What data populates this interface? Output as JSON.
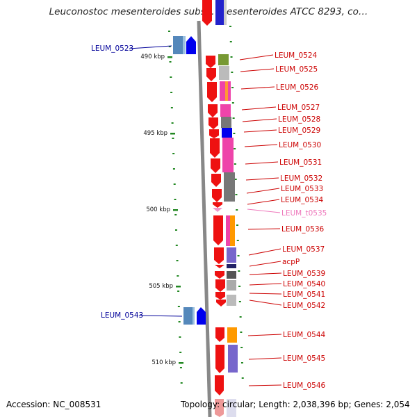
{
  "title": "Leuconostoc mesenteroides subsp. mesenteroides ATCC 8293, co…",
  "footer": {
    "accession": "Accession: NC_008531",
    "summary": "Topology: circular; Length: 2,038,396 bp; Genes: 2,054"
  },
  "colors": {
    "gene_label": "#cc0000",
    "trna_label": "#ee77bb",
    "left_label": "#000099",
    "backbone": "#888888",
    "tick": "#228822"
  },
  "scale": [
    {
      "label": "490 kbp",
      "kbp": 490
    },
    {
      "label": "495 kbp",
      "kbp": 495
    },
    {
      "label": "500 kbp",
      "kbp": 500
    },
    {
      "label": "505 kbp",
      "kbp": 505
    },
    {
      "label": "510 kbp",
      "kbp": 510
    }
  ],
  "left_labels": [
    {
      "id": "LEUM_0523",
      "name": "LEUM_0523"
    },
    {
      "id": "LEUM_0543",
      "name": "LEUM_0543"
    }
  ],
  "genes": [
    {
      "id": "LEUM_0524",
      "name": "LEUM_0524",
      "kind": "gene"
    },
    {
      "id": "LEUM_0525",
      "name": "LEUM_0525",
      "kind": "gene"
    },
    {
      "id": "LEUM_0526",
      "name": "LEUM_0526",
      "kind": "gene"
    },
    {
      "id": "LEUM_0527",
      "name": "LEUM_0527",
      "kind": "gene"
    },
    {
      "id": "LEUM_0528",
      "name": "LEUM_0528",
      "kind": "gene"
    },
    {
      "id": "LEUM_0529",
      "name": "LEUM_0529",
      "kind": "gene"
    },
    {
      "id": "LEUM_0530",
      "name": "LEUM_0530",
      "kind": "gene"
    },
    {
      "id": "LEUM_0531",
      "name": "LEUM_0531",
      "kind": "gene"
    },
    {
      "id": "LEUM_0532",
      "name": "LEUM_0532",
      "kind": "gene"
    },
    {
      "id": "LEUM_0533",
      "name": "LEUM_0533",
      "kind": "gene"
    },
    {
      "id": "LEUM_0534",
      "name": "LEUM_0534",
      "kind": "gene"
    },
    {
      "id": "LEUM_t0535",
      "name": "LEUM_t0535",
      "kind": "trna"
    },
    {
      "id": "LEUM_0536",
      "name": "LEUM_0536",
      "kind": "gene"
    },
    {
      "id": "LEUM_0537",
      "name": "LEUM_0537",
      "kind": "gene"
    },
    {
      "id": "acpP",
      "name": "acpP",
      "kind": "gene"
    },
    {
      "id": "LEUM_0539",
      "name": "LEUM_0539",
      "kind": "gene"
    },
    {
      "id": "LEUM_0540",
      "name": "LEUM_0540",
      "kind": "gene"
    },
    {
      "id": "LEUM_0541",
      "name": "LEUM_0541",
      "kind": "gene"
    },
    {
      "id": "LEUM_0542",
      "name": "LEUM_0542",
      "kind": "gene"
    },
    {
      "id": "LEUM_0544",
      "name": "LEUM_0544",
      "kind": "gene"
    },
    {
      "id": "LEUM_0545",
      "name": "LEUM_0545",
      "kind": "gene"
    },
    {
      "id": "LEUM_0546",
      "name": "LEUM_0546",
      "kind": "gene"
    }
  ]
}
